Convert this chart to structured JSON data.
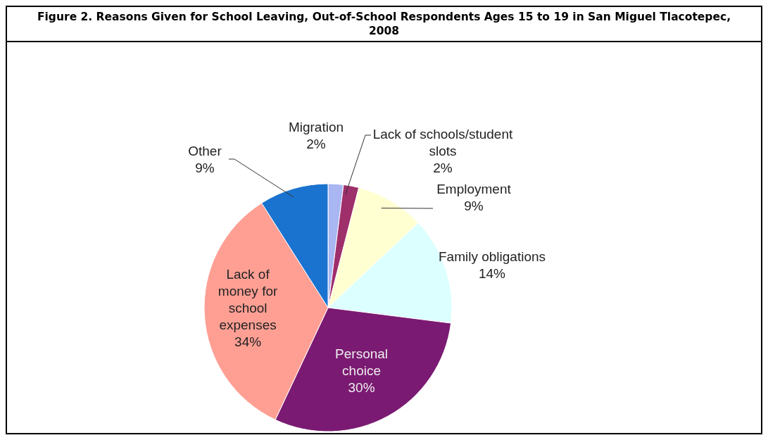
{
  "chart_data": {
    "type": "pie",
    "title": "Figure 2. Reasons Given for School Leaving, Out-of-School Respondents Ages 15 to 19 in San Miguel Tlacotepec, 2008",
    "categories": [
      "Migration",
      "Lack of schools/student slots",
      "Employment",
      "Family obligations",
      "Personal choice",
      "Lack of money for school expenses",
      "Other"
    ],
    "values": [
      2,
      2,
      9,
      14,
      30,
      34,
      9
    ],
    "colors": [
      "#a9b6f2",
      "#9e2f6b",
      "#ffffd2",
      "#dcffff",
      "#7b1a72",
      "#ff9f94",
      "#1a73cf"
    ],
    "value_labels": [
      "2%",
      "2%",
      "9%",
      "14%",
      "30%",
      "34%",
      "9%"
    ],
    "legend": false
  }
}
